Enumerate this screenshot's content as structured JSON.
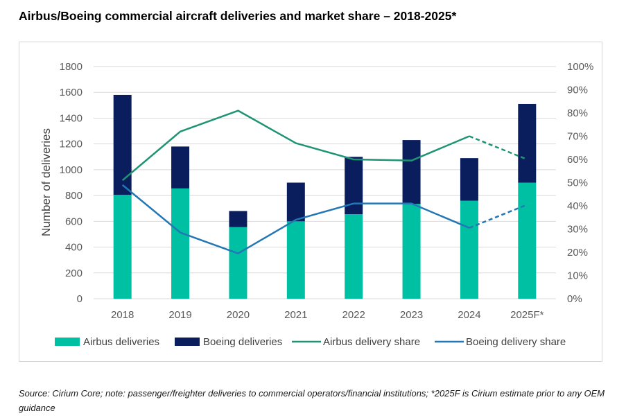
{
  "title": "Airbus/Boeing commercial aircraft deliveries and market share – 2018-2025*",
  "source": "Source: Cirium Core; note: passenger/freighter deliveries to commercial operators/financial institutions; *2025F is Cirium estimate prior to any OEM guidance",
  "colors": {
    "airbus_deliveries": "#00C0A3",
    "boeing_deliveries": "#0A1E5E",
    "airbus_share": "#1E9474",
    "boeing_share": "#2277B4",
    "gridline": "#d9d9d9"
  },
  "chart_data": {
    "type": "bar",
    "stacked": true,
    "categories": [
      "2018",
      "2019",
      "2020",
      "2021",
      "2022",
      "2023",
      "2024",
      "2025F*"
    ],
    "ylabel": "Number of deliveries",
    "ylim": [
      0,
      1800
    ],
    "y_ticks": [
      "0",
      "200",
      "400",
      "600",
      "800",
      "1000",
      "1200",
      "1400",
      "1600",
      "1800"
    ],
    "y2lim": [
      0,
      100
    ],
    "y2_ticks": [
      "0%",
      "10%",
      "20%",
      "30%",
      "40%",
      "50%",
      "60%",
      "70%",
      "80%",
      "90%",
      "100%"
    ],
    "grid": true,
    "legend_position": "bottom",
    "series": [
      {
        "name": "Airbus deliveries",
        "kind": "bar",
        "axis": "left",
        "values": [
          805,
          855,
          555,
          600,
          655,
          735,
          760,
          900
        ]
      },
      {
        "name": "Boeing deliveries",
        "kind": "bar",
        "axis": "left",
        "values": [
          775,
          325,
          125,
          300,
          445,
          495,
          330,
          610
        ]
      },
      {
        "name": "Airbus delivery share",
        "kind": "line",
        "axis": "right",
        "unit": "%",
        "values": [
          51,
          72,
          81,
          67,
          60,
          59.5,
          70,
          60
        ],
        "dashed_from_index": 6
      },
      {
        "name": "Boeing delivery share",
        "kind": "line",
        "axis": "right",
        "unit": "%",
        "values": [
          49,
          28.5,
          19.5,
          34,
          41,
          41,
          30.5,
          40.5
        ],
        "dashed_from_index": 6
      }
    ]
  }
}
